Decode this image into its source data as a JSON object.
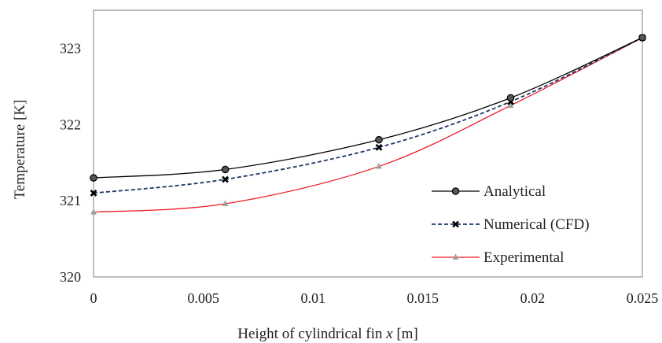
{
  "chart_data": {
    "type": "line",
    "title": "",
    "xlabel": "Height of cylindrical fin x [m]",
    "xlabel_parts": {
      "prefix": "Height of cylindrical fin ",
      "var": "x",
      "suffix": " [m]"
    },
    "ylabel": "Temperature [K]",
    "xlim": [
      0,
      0.025
    ],
    "ylim": [
      320,
      323.5
    ],
    "x_ticks": [
      0,
      0.005,
      0.01,
      0.015,
      0.02,
      0.025
    ],
    "x_tick_labels": [
      "0",
      "0.005",
      "0.01",
      "0.015",
      "0.02",
      "0.025"
    ],
    "y_ticks": [
      320,
      321,
      322,
      323
    ],
    "y_tick_labels": [
      "320",
      "321",
      "322",
      "323"
    ],
    "grid": false,
    "legend_position": "bottom-right",
    "series": [
      {
        "name": "Analytical",
        "color": "#000000",
        "line_style": "solid",
        "marker": "circle",
        "marker_color": "#555555",
        "x": [
          0,
          0.006,
          0.013,
          0.019,
          0.025
        ],
        "y": [
          321.3,
          321.41,
          321.8,
          322.35,
          323.14
        ]
      },
      {
        "name": "Numerical (CFD)",
        "color": "#1f3864",
        "line_style": "dashed",
        "marker": "x",
        "marker_color": "#000000",
        "x": [
          0,
          0.006,
          0.013,
          0.019,
          0.025
        ],
        "y": [
          321.1,
          321.28,
          321.7,
          322.3,
          323.14
        ]
      },
      {
        "name": "Experimental",
        "color": "#ee1c25",
        "line_style": "solid",
        "marker": "triangle",
        "marker_color": "#a0a0a0",
        "x": [
          0,
          0.006,
          0.013,
          0.019,
          0.025
        ],
        "y": [
          320.85,
          320.96,
          321.45,
          322.25,
          323.14
        ]
      }
    ]
  }
}
